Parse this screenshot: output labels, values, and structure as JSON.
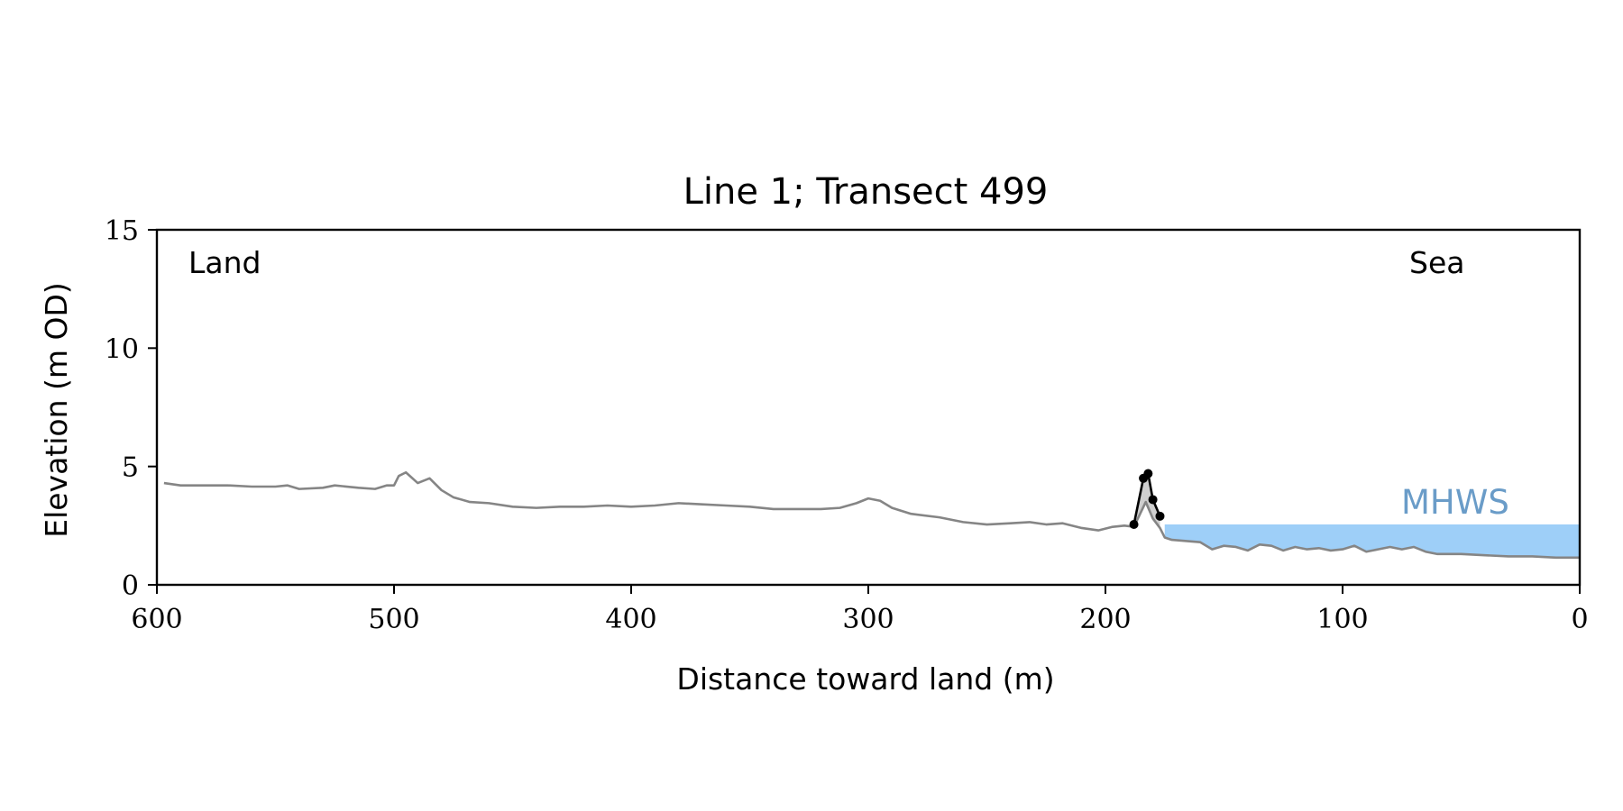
{
  "chart_data": {
    "type": "line",
    "title": "Line 1; Transect 499",
    "xlabel": "Distance toward land (m)",
    "ylabel": "Elevation (m OD)",
    "xlim": [
      600,
      0
    ],
    "ylim": [
      0,
      15
    ],
    "x_reversed": true,
    "x_ticks": [
      600,
      500,
      400,
      300,
      200,
      100,
      0
    ],
    "x_tick_labels": [
      "600",
      "500",
      "400",
      "300",
      "200",
      "100",
      "0"
    ],
    "y_ticks": [
      0,
      5,
      10,
      15
    ],
    "y_tick_labels": [
      "0",
      "5",
      "10",
      "15"
    ],
    "grid": false,
    "annotations": {
      "land_label": "Land",
      "sea_label": "Sea",
      "mhws_label": "MHWS"
    },
    "mhws": {
      "elevation": 2.55,
      "x_start": 175,
      "x_end": 0,
      "color": "#9ecff8",
      "label_color": "#6a9cc8"
    },
    "colors": {
      "profile": "#858585",
      "feature_line": "#000000",
      "feature_fill": "#cfcfcf",
      "axes": "#000000"
    },
    "series": [
      {
        "points": [
          [
            597,
            4.3
          ],
          [
            590,
            4.2
          ],
          [
            580,
            4.2
          ],
          [
            570,
            4.2
          ],
          [
            560,
            4.15
          ],
          [
            550,
            4.15
          ],
          [
            545,
            4.2
          ],
          [
            540,
            4.05
          ],
          [
            530,
            4.1
          ],
          [
            525,
            4.2
          ],
          [
            515,
            4.1
          ],
          [
            508,
            4.05
          ],
          [
            503,
            4.2
          ],
          [
            500,
            4.2
          ],
          [
            498,
            4.6
          ],
          [
            495,
            4.75
          ],
          [
            490,
            4.3
          ],
          [
            485,
            4.5
          ],
          [
            480,
            4.0
          ],
          [
            475,
            3.7
          ],
          [
            468,
            3.5
          ],
          [
            460,
            3.45
          ],
          [
            450,
            3.3
          ],
          [
            440,
            3.25
          ],
          [
            430,
            3.3
          ],
          [
            420,
            3.3
          ],
          [
            410,
            3.35
          ],
          [
            400,
            3.3
          ],
          [
            390,
            3.35
          ],
          [
            380,
            3.45
          ],
          [
            370,
            3.4
          ],
          [
            360,
            3.35
          ],
          [
            350,
            3.3
          ],
          [
            340,
            3.2
          ],
          [
            330,
            3.2
          ],
          [
            320,
            3.2
          ],
          [
            312,
            3.25
          ],
          [
            305,
            3.45
          ],
          [
            300,
            3.65
          ],
          [
            295,
            3.55
          ],
          [
            290,
            3.25
          ],
          [
            282,
            3.0
          ],
          [
            270,
            2.85
          ],
          [
            260,
            2.65
          ],
          [
            250,
            2.55
          ],
          [
            240,
            2.6
          ],
          [
            232,
            2.65
          ],
          [
            225,
            2.55
          ],
          [
            218,
            2.6
          ],
          [
            210,
            2.4
          ],
          [
            203,
            2.3
          ],
          [
            197,
            2.45
          ],
          [
            192,
            2.5
          ],
          [
            188,
            2.45
          ],
          [
            183,
            3.5
          ],
          [
            180,
            2.8
          ],
          [
            177,
            2.4
          ],
          [
            175,
            2.0
          ],
          [
            172,
            1.9
          ],
          [
            160,
            1.8
          ],
          [
            155,
            1.5
          ],
          [
            150,
            1.65
          ],
          [
            145,
            1.6
          ],
          [
            140,
            1.45
          ],
          [
            135,
            1.7
          ],
          [
            130,
            1.65
          ],
          [
            125,
            1.45
          ],
          [
            120,
            1.6
          ],
          [
            115,
            1.5
          ],
          [
            110,
            1.55
          ],
          [
            105,
            1.45
          ],
          [
            100,
            1.5
          ],
          [
            95,
            1.65
          ],
          [
            90,
            1.4
          ],
          [
            85,
            1.5
          ],
          [
            80,
            1.6
          ],
          [
            75,
            1.5
          ],
          [
            70,
            1.6
          ],
          [
            65,
            1.4
          ],
          [
            60,
            1.3
          ],
          [
            50,
            1.3
          ],
          [
            40,
            1.25
          ],
          [
            30,
            1.2
          ],
          [
            20,
            1.2
          ],
          [
            10,
            1.15
          ],
          [
            0,
            1.15
          ]
        ]
      },
      {
        "points": [
          [
            188,
            2.55
          ],
          [
            184,
            4.5
          ],
          [
            182,
            4.7
          ],
          [
            180,
            3.6
          ],
          [
            177,
            2.9
          ]
        ]
      }
    ]
  }
}
